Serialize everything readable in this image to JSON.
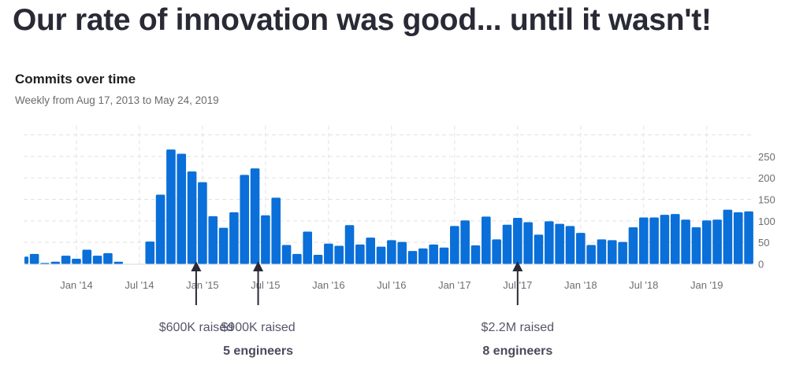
{
  "headline": "Our rate of innovation was good... until it wasn't!",
  "chart_data": {
    "type": "bar",
    "title": "Commits over time",
    "subtitle": "Weekly from Aug 17, 2013 to May 24, 2019",
    "xlabel": "",
    "ylabel": "",
    "ylim": [
      0,
      300
    ],
    "yticks": [
      0,
      50,
      100,
      150,
      200,
      250
    ],
    "y_axis_position": "right",
    "grid": true,
    "bar_color": "#0a6fd8",
    "categories": [
      "Aug 2013",
      "Sep 2013",
      "Oct 2013",
      "Nov 2013",
      "Dec 2013",
      "Jan 2014",
      "Feb 2014",
      "Mar 2014",
      "Apr 2014",
      "May 2014",
      "Jun 2014",
      "Jul 2014",
      "Aug 2014",
      "Sep 2014",
      "Oct 2014",
      "Nov 2014",
      "Dec 2014",
      "Jan 2015",
      "Feb 2015",
      "Mar 2015",
      "Apr 2015",
      "May 2015",
      "Jun 2015",
      "Jul 2015",
      "Aug 2015",
      "Sep 2015",
      "Oct 2015",
      "Nov 2015",
      "Dec 2015",
      "Jan 2016",
      "Feb 2016",
      "Mar 2016",
      "Apr 2016",
      "May 2016",
      "Jun 2016",
      "Jul 2016",
      "Aug 2016",
      "Sep 2016",
      "Oct 2016",
      "Nov 2016",
      "Dec 2016",
      "Jan 2017",
      "Feb 2017",
      "Mar 2017",
      "Apr 2017",
      "May 2017",
      "Jun 2017",
      "Jul 2017",
      "Aug 2017",
      "Sep 2017",
      "Oct 2017",
      "Nov 2017",
      "Dec 2017",
      "Jan 2018",
      "Feb 2018",
      "Mar 2018",
      "Apr 2018",
      "May 2018",
      "Jun 2018",
      "Jul 2018",
      "Aug 2018",
      "Sep 2018",
      "Oct 2018",
      "Nov 2018",
      "Dec 2018",
      "Jan 2019",
      "Feb 2019",
      "Mar 2019",
      "Apr 2019",
      "May 2019"
    ],
    "values": [
      17,
      23,
      2,
      5,
      19,
      12,
      33,
      19,
      25,
      5,
      0,
      0,
      52,
      161,
      266,
      256,
      215,
      190,
      111,
      84,
      120,
      207,
      222,
      113,
      154,
      44,
      23,
      75,
      21,
      47,
      42,
      90,
      45,
      61,
      40,
      55,
      51,
      30,
      36,
      45,
      38,
      88,
      101,
      43,
      110,
      57,
      91,
      107,
      97,
      68,
      99,
      93,
      88,
      72,
      44,
      57,
      55,
      51,
      85,
      108,
      108,
      114,
      116,
      103,
      85,
      101,
      103,
      126,
      120,
      122
    ],
    "xtick_labels": [
      {
        "label": "Jan '14",
        "category": "Jan 2014"
      },
      {
        "label": "Jul '14",
        "category": "Jul 2014"
      },
      {
        "label": "Jan '15",
        "category": "Jan 2015"
      },
      {
        "label": "Jul '15",
        "category": "Jul 2015"
      },
      {
        "label": "Jan '16",
        "category": "Jan 2016"
      },
      {
        "label": "Jul '16",
        "category": "Jul 2016"
      },
      {
        "label": "Jan '17",
        "category": "Jan 2017"
      },
      {
        "label": "Jul '17",
        "category": "Jul 2017"
      },
      {
        "label": "Jan '18",
        "category": "Jan 2018"
      },
      {
        "label": "Jul '18",
        "category": "Jul 2018"
      },
      {
        "label": "Jan '19",
        "category": "Jan 2019"
      }
    ],
    "annotations": [
      {
        "category": "Dec 2014",
        "offset": 0.4,
        "lines": [
          "$600K raised"
        ]
      },
      {
        "category": "Jun 2015",
        "offset": 0.3,
        "lines": [
          "$900K raised",
          "5 engineers"
        ]
      },
      {
        "category": "Jul 2017",
        "offset": 0.0,
        "lines": [
          "$2.2M raised",
          "8 engineers"
        ]
      }
    ]
  }
}
